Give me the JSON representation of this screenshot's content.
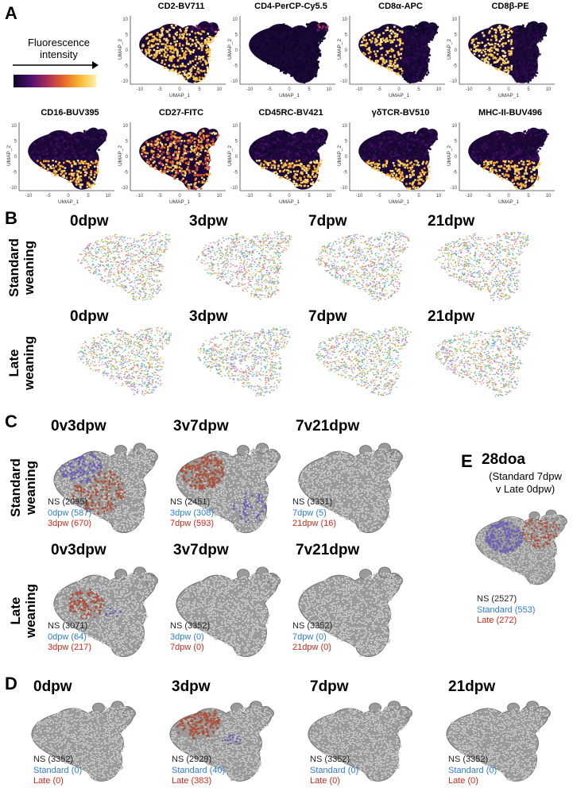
{
  "panel_a": {
    "letter": "A",
    "legend": {
      "label": "Fluorescence intensity",
      "gradient": [
        "#0b0524",
        "#4a0f6e",
        "#a62c5e",
        "#e8632a",
        "#f9b731",
        "#fbf3a8"
      ]
    },
    "axis": {
      "x_label": "UMAP_1",
      "y_label": "UMAP_2",
      "x_ticks": [
        "-10",
        "-5",
        "0",
        "5",
        "10"
      ],
      "y_ticks": [
        "10",
        "5",
        "0",
        "-5",
        "-10"
      ]
    },
    "markers": [
      {
        "name": "CD2-BV711",
        "pattern": "high"
      },
      {
        "name": "CD4-PerCP-Cy5.5",
        "pattern": "low"
      },
      {
        "name": "CD8α-APC",
        "pattern": "left"
      },
      {
        "name": "CD8β-PE",
        "pattern": "left"
      },
      {
        "name": "CD16-BUV395",
        "pattern": "bottom"
      },
      {
        "name": "CD27-FITC",
        "pattern": "mixed"
      },
      {
        "name": "CD45RC-BV421",
        "pattern": "bottom"
      },
      {
        "name": "γδTCR-BV510",
        "pattern": "bottom"
      },
      {
        "name": "MHC-II-BUV496",
        "pattern": "bottom"
      }
    ]
  },
  "panel_b": {
    "letter": "B",
    "rows": [
      {
        "label_line1": "Standard",
        "label_line2": "weaning",
        "timepoints": [
          "0dpw",
          "3dpw",
          "7dpw",
          "21dpw"
        ]
      },
      {
        "label_line1": "Late",
        "label_line2": "weaning",
        "timepoints": [
          "0dpw",
          "3dpw",
          "7dpw",
          "21dpw"
        ]
      }
    ],
    "cluster_colors": [
      "#e6739f",
      "#5aa6e0",
      "#7fc87a",
      "#c48be0",
      "#f0b44c",
      "#4fc5b0",
      "#e87b5a",
      "#9aa0f0",
      "#b8d04a"
    ]
  },
  "panel_c": {
    "letter": "C",
    "rows": [
      {
        "label_line1": "Standard",
        "label_line2": "weaning",
        "plots": [
          {
            "title": "0v3dpw",
            "ns": "NS (2095)",
            "blue": "0dpw (587)",
            "red": "3dpw (670)"
          },
          {
            "title": "3v7dpw",
            "ns": "NS (2451)",
            "blue": "3dpw (308)",
            "red": "7dpw (593)"
          },
          {
            "title": "7v21dpw",
            "ns": "NS (3331)",
            "blue": "7dpw (5)",
            "red": "21dpw (16)"
          }
        ]
      },
      {
        "label_line1": "Late",
        "label_line2": "weaning",
        "plots": [
          {
            "title": "0v3dpw",
            "ns": "NS (3071)",
            "blue": "0dpw (64)",
            "red": "3dpw (217)"
          },
          {
            "title": "3v7dpw",
            "ns": "NS (3352)",
            "blue": "3dpw (0)",
            "red": "7dpw (0)"
          },
          {
            "title": "7v21dpw",
            "ns": "NS (3352)",
            "blue": "7dpw (0)",
            "red": "21dpw (0)"
          }
        ]
      }
    ]
  },
  "panel_d": {
    "letter": "D",
    "plots": [
      {
        "title": "0dpw",
        "ns": "NS (3352)",
        "blue": "Standard (0)",
        "red": "Late (0)"
      },
      {
        "title": "3dpw",
        "ns": "NS (2929)",
        "blue": "Standard (40)",
        "red": "Late (383)"
      },
      {
        "title": "7dpw",
        "ns": "NS (3352)",
        "blue": "Standard (0)",
        "red": "Late (0)"
      },
      {
        "title": "21dpw",
        "ns": "NS (3352)",
        "blue": "Standard (0)",
        "red": "Late (0)"
      }
    ]
  },
  "panel_e": {
    "letter": "E",
    "title": "28doa",
    "subtitle_line1": "(Standard 7dpw",
    "subtitle_line2": "v Late 0dpw)",
    "ns": "NS (2527)",
    "blue": "Standard (553)",
    "red": "Late (272)"
  },
  "colors": {
    "ns_dot": "#d9d9d9",
    "ns_edge": "#7a7a7a",
    "blue_dot": "#6a55d6",
    "red_dot": "#c9411f"
  }
}
